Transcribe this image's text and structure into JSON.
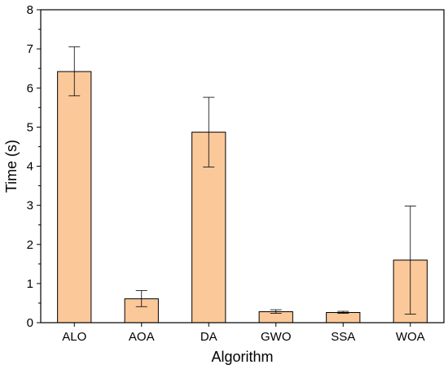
{
  "chart_data": {
    "type": "bar",
    "title": "",
    "xlabel": "Algorithm",
    "ylabel": "Time (s)",
    "categories": [
      "ALO",
      "AOA",
      "DA",
      "GWO",
      "SSA",
      "WOA"
    ],
    "values": [
      6.42,
      0.61,
      4.87,
      0.28,
      0.26,
      1.6
    ],
    "error_low": [
      5.8,
      0.41,
      3.98,
      0.24,
      0.24,
      0.22
    ],
    "error_high": [
      7.05,
      0.82,
      5.76,
      0.33,
      0.29,
      2.98
    ],
    "ylim": [
      0,
      8
    ],
    "yticks": [
      "0",
      "1",
      "2",
      "3",
      "4",
      "5",
      "6",
      "7",
      "8"
    ],
    "grid": false,
    "legend": "none",
    "bar_color": "#fbc89a",
    "bar_edge_color": "#000000",
    "error_bar_color": "#000000"
  }
}
